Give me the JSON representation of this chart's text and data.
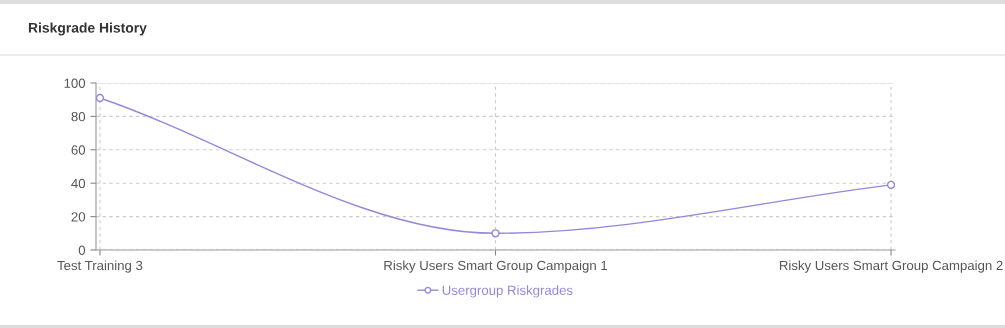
{
  "chart_data": {
    "type": "line",
    "title": "Riskgrade History",
    "categories": [
      "Test Training 3",
      "Risky Users Smart Group Campaign 1",
      "Risky Users Smart Group Campaign 2"
    ],
    "series": [
      {
        "name": "Usergroup Riskgrades",
        "color": "#9487dc",
        "values": [
          91,
          10,
          39
        ]
      }
    ],
    "ylim": [
      0,
      100
    ],
    "yticks": [
      0,
      20,
      40,
      60,
      80,
      100
    ],
    "grid": true,
    "legend": "bottom",
    "marker": "circle",
    "line_style": "solid"
  }
}
